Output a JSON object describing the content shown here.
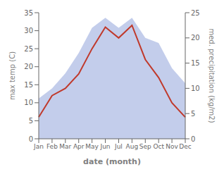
{
  "chart_data": {
    "type": "line",
    "xlabel": "date (month)",
    "ylabel": "max temp (C)",
    "y2label": "med. precipitation (kg/m2)",
    "categories": [
      "Jan",
      "Feb",
      "Mar",
      "Apr",
      "May",
      "Jun",
      "Jul",
      "Aug",
      "Sep",
      "Oct",
      "Nov",
      "Dec"
    ],
    "series": [
      {
        "type": "area",
        "color": "#b8c4e8",
        "axis": "y2",
        "values": [
          8,
          10,
          13,
          17,
          22,
          24,
          22,
          24,
          20,
          19,
          14,
          11
        ]
      },
      {
        "type": "line",
        "color": "#c0392b",
        "values": [
          6,
          12,
          14,
          18,
          25,
          31,
          28,
          31.5,
          22,
          17,
          10,
          6
        ]
      }
    ],
    "ylim": [
      0,
      35
    ],
    "yticks": [
      0,
      5,
      10,
      15,
      20,
      25,
      30,
      35
    ],
    "y2lim": [
      0,
      25
    ],
    "y2ticks": [
      0,
      5,
      10,
      15,
      20,
      25
    ],
    "grid": false
  }
}
